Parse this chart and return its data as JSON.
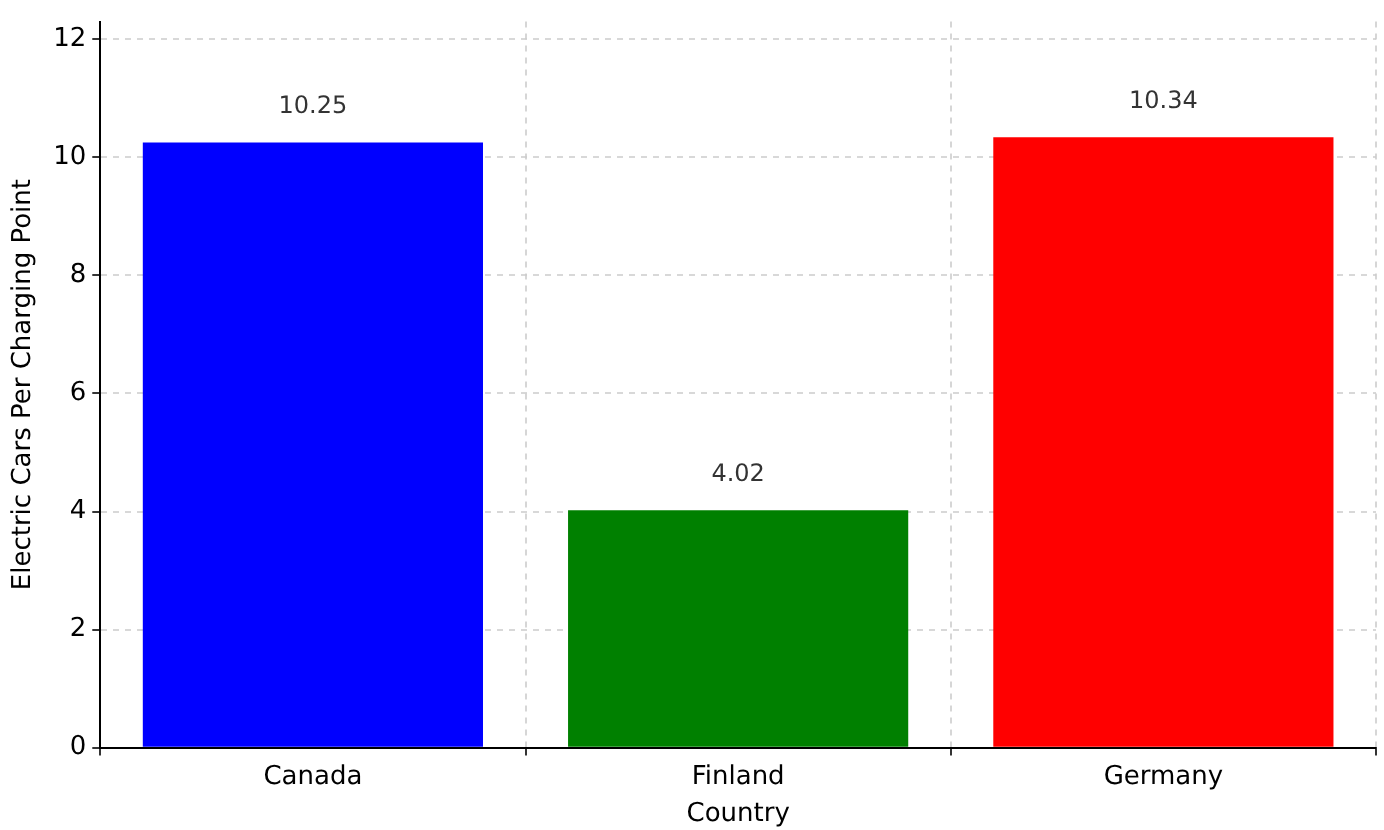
{
  "chart_data": {
    "type": "bar",
    "xlabel": "Country",
    "ylabel": "Electric Cars Per Charging Point",
    "categories": [
      "Canada",
      "Finland",
      "Germany"
    ],
    "values": [
      10.25,
      4.02,
      10.34
    ],
    "colors": [
      "#0000ff",
      "#008000",
      "#ff0000"
    ],
    "ylim": [
      0,
      12.3
    ],
    "yticks": [
      0,
      2,
      4,
      6,
      8,
      10,
      12
    ],
    "grid": true,
    "data_labels": true
  }
}
